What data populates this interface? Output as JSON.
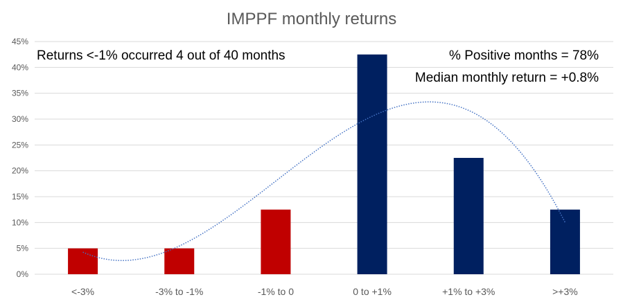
{
  "chart_data": {
    "type": "bar",
    "title": "IMPPF monthly returns",
    "xlabel": "",
    "ylabel": "",
    "categories": [
      "<-3%",
      "-3% to -1%",
      "-1% to 0",
      "0 to +1%",
      "+1% to +3%",
      ">+3%"
    ],
    "values": [
      5,
      5,
      12.5,
      42.5,
      22.5,
      12.5
    ],
    "bar_colors": [
      "#C00000",
      "#C00000",
      "#C00000",
      "#002060",
      "#002060",
      "#002060"
    ],
    "ylim": [
      0,
      45
    ],
    "yticks": [
      0,
      5,
      10,
      15,
      20,
      25,
      30,
      35,
      40,
      45
    ],
    "ytick_labels": [
      "0%",
      "5%",
      "10%",
      "15%",
      "20%",
      "25%",
      "30%",
      "35%",
      "40%",
      "45%"
    ],
    "grid": true,
    "trendline": {
      "type": "polynomial",
      "style": "dotted",
      "color": "#4472C4"
    },
    "annotations": [
      "Returns <-1% occurred 4 out of 40 months",
      "% Positive months = 78%",
      "Median monthly  return = +0.8%"
    ]
  },
  "colors": {
    "gridline": "#D9D9D9",
    "axis_text": "#595959",
    "negative_bar": "#C00000",
    "positive_bar": "#002060"
  }
}
